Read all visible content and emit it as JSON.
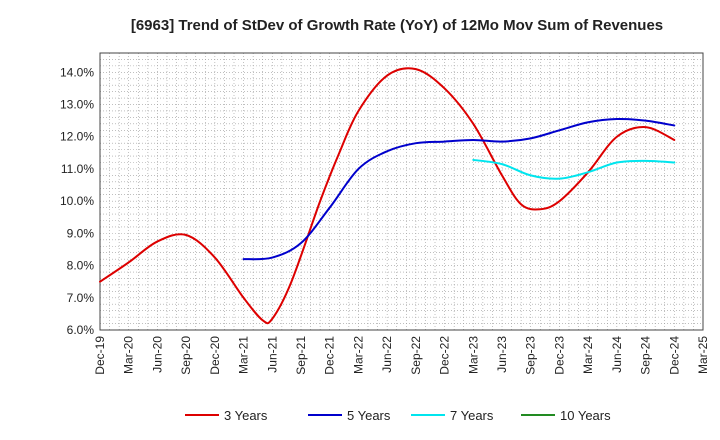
{
  "chart_data": {
    "type": "line",
    "title": "[6963]  Trend of StDev of Growth Rate (YoY) of 12Mo Mov Sum of Revenues",
    "xlabel": "",
    "ylabel": "",
    "x_tick_labels": [
      "Dec-19",
      "Mar-20",
      "Jun-20",
      "Sep-20",
      "Dec-20",
      "Mar-21",
      "Jun-21",
      "Sep-21",
      "Dec-21",
      "Mar-22",
      "Jun-22",
      "Sep-22",
      "Dec-22",
      "Mar-23",
      "Jun-23",
      "Sep-23",
      "Dec-23",
      "Mar-24",
      "Jun-24",
      "Sep-24",
      "Dec-24",
      "Mar-25"
    ],
    "y_tick_labels": [
      "6.0%",
      "7.0%",
      "8.0%",
      "9.0%",
      "10.0%",
      "11.0%",
      "12.0%",
      "13.0%",
      "14.0%"
    ],
    "ylim": [
      6.0,
      14.6
    ],
    "xlim_months": [
      0,
      63
    ],
    "grid": true,
    "legend_position": "bottom",
    "series": [
      {
        "name": "3 Years",
        "color": "#dd0000",
        "points": [
          [
            0,
            7.5
          ],
          [
            3,
            8.1
          ],
          [
            6,
            8.75
          ],
          [
            9,
            8.95
          ],
          [
            12,
            8.25
          ],
          [
            15,
            7.0
          ],
          [
            17,
            6.3
          ],
          [
            18,
            6.35
          ],
          [
            20,
            7.5
          ],
          [
            23,
            10.0
          ],
          [
            25,
            11.5
          ],
          [
            27,
            12.8
          ],
          [
            30,
            13.9
          ],
          [
            33,
            14.1
          ],
          [
            36,
            13.5
          ],
          [
            39,
            12.4
          ],
          [
            42,
            10.8
          ],
          [
            44,
            9.9
          ],
          [
            46,
            9.75
          ],
          [
            48,
            10.0
          ],
          [
            51,
            10.9
          ],
          [
            54,
            12.0
          ],
          [
            57,
            12.3
          ],
          [
            60,
            11.9
          ]
        ]
      },
      {
        "name": "5 Years",
        "color": "#0000cc",
        "points": [
          [
            15,
            8.2
          ],
          [
            18,
            8.25
          ],
          [
            21,
            8.7
          ],
          [
            24,
            9.8
          ],
          [
            27,
            11.0
          ],
          [
            30,
            11.55
          ],
          [
            33,
            11.8
          ],
          [
            36,
            11.85
          ],
          [
            39,
            11.9
          ],
          [
            42,
            11.85
          ],
          [
            45,
            11.95
          ],
          [
            48,
            12.2
          ],
          [
            51,
            12.45
          ],
          [
            54,
            12.55
          ],
          [
            57,
            12.5
          ],
          [
            60,
            12.35
          ]
        ]
      },
      {
        "name": "7 Years",
        "color": "#00e5ee",
        "points": [
          [
            39,
            11.28
          ],
          [
            42,
            11.15
          ],
          [
            45,
            10.8
          ],
          [
            48,
            10.7
          ],
          [
            51,
            10.9
          ],
          [
            54,
            11.2
          ],
          [
            57,
            11.25
          ],
          [
            60,
            11.2
          ]
        ]
      },
      {
        "name": "10 Years",
        "color": "#228b22",
        "points": []
      }
    ]
  }
}
